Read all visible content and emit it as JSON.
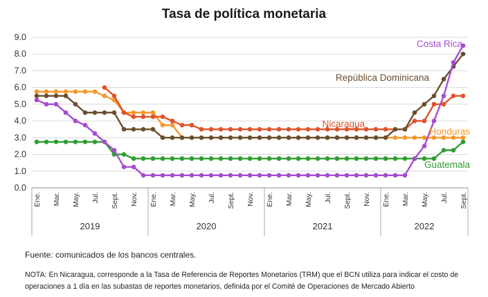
{
  "chart_data": {
    "type": "line",
    "title": "Tasa de política monetaria",
    "ylim": [
      0,
      9
    ],
    "yticks": [
      "0.0",
      "1.0",
      "2.0",
      "3.0",
      "4.0",
      "5.0",
      "6.0",
      "7.0",
      "8.0",
      "9.0"
    ],
    "grid": true,
    "x_tick_labels": [
      "Ene.",
      "Mar.",
      "May.",
      "Jul.",
      "Sept.",
      "Nov.",
      "Ene.",
      "Mar.",
      "May.",
      "Jul.",
      "Sept.",
      "Nov.",
      "Ene.",
      "Mar.",
      "May.",
      "Jul.",
      "Sept.",
      "Nov.",
      "Ene.",
      "Mar.",
      "May.",
      "Jul.",
      "Sept."
    ],
    "years": [
      "2019",
      "2020",
      "2021",
      "2022"
    ],
    "series": [
      {
        "name": "Costa Rica",
        "color": "#a64ccf",
        "values": [
          5.25,
          5.25,
          5.0,
          5.0,
          4.75,
          4.5,
          4.0,
          4.0,
          3.75,
          3.25,
          3.25,
          2.75,
          2.25,
          2.25,
          1.25,
          1.25,
          1.25,
          0.75,
          0.75,
          0.75,
          0.75,
          0.75,
          0.75,
          0.75,
          0.75,
          0.75,
          0.75,
          0.75,
          0.75,
          0.75,
          0.75,
          0.75,
          0.75,
          0.75,
          0.75,
          0.75,
          0.75,
          0.75,
          0.75,
          0.75,
          0.75,
          0.75,
          0.75,
          0.75,
          0.75,
          0.75,
          0.75,
          0.75,
          0.75,
          0.75,
          0.75,
          0.75,
          0.75,
          0.75,
          0.75,
          0.75,
          0.75,
          0.75,
          0.75,
          0.75,
          0.75,
          1.25,
          1.75,
          1.75,
          2.5,
          4.0,
          4.0,
          5.5,
          7.5,
          7.5,
          8.5
        ]
      },
      {
        "name": "República Dominicana",
        "color": "#6b4e2e",
        "values": [
          5.5,
          5.5,
          5.5,
          5.5,
          5.5,
          5.5,
          5.0,
          4.75,
          4.5,
          4.5,
          4.5,
          4.5,
          4.5,
          4.5,
          3.5,
          3.5,
          3.5,
          3.5,
          3.5,
          3.5,
          3.5,
          3.0,
          3.0,
          3.0,
          3.0,
          3.0,
          3.0,
          3.0,
          3.0,
          3.0,
          3.0,
          3.0,
          3.0,
          3.0,
          3.0,
          3.0,
          3.0,
          3.0,
          3.0,
          3.0,
          3.0,
          3.0,
          3.0,
          3.0,
          3.0,
          3.0,
          3.0,
          3.0,
          3.0,
          3.0,
          3.0,
          3.0,
          3.0,
          3.0,
          3.0,
          3.0,
          3.0,
          3.0,
          3.5,
          3.5,
          3.5,
          3.5,
          4.5,
          5.0,
          5.0,
          5.5,
          5.5,
          6.5,
          7.25,
          7.75,
          8.0
        ]
      },
      {
        "name": "Nicaragua",
        "color": "#e0522a",
        "values": [
          null,
          null,
          null,
          null,
          null,
          null,
          null,
          null,
          null,
          null,
          null,
          null,
          null,
          null,
          null,
          null,
          null,
          null,
          null,
          null,
          null,
          null,
          null,
          null,
          null,
          null,
          null,
          null,
          null,
          null,
          null,
          null,
          null,
          null,
          null,
          null,
          null,
          null,
          null,
          null,
          null,
          null,
          null,
          null,
          null,
          null,
          null,
          null,
          null,
          null,
          null,
          null,
          null,
          null,
          null,
          null,
          null,
          null,
          null,
          null,
          null,
          null,
          null,
          null,
          null,
          null,
          null,
          null,
          null,
          null,
          null
        ]
      },
      {
        "name": "Honduras",
        "color": "#f5962a",
        "values": [
          5.75,
          5.75,
          5.75,
          5.75,
          5.75,
          5.75,
          5.75,
          5.75,
          5.75,
          5.75,
          5.75,
          5.5,
          5.5,
          5.25,
          4.5,
          4.5,
          4.5,
          4.5,
          4.5,
          4.5,
          3.75,
          3.75,
          3.75,
          3.0,
          3.0,
          3.0,
          3.0,
          3.0,
          3.0,
          3.0,
          3.0,
          3.0,
          3.0,
          3.0,
          3.0,
          3.0,
          3.0,
          3.0,
          3.0,
          3.0,
          3.0,
          3.0,
          3.0,
          3.0,
          3.0,
          3.0,
          3.0,
          3.0,
          3.0,
          3.0,
          3.0,
          3.0,
          3.0,
          3.0,
          3.0,
          3.0,
          3.0,
          3.0,
          3.0,
          3.0,
          3.0,
          3.0,
          3.0,
          3.0,
          3.0,
          3.0,
          3.0,
          3.0,
          3.0,
          3.0,
          3.0
        ]
      },
      {
        "name": "Guatemala",
        "color": "#2e9e30",
        "values": [
          2.75,
          2.75,
          2.75,
          2.75,
          2.75,
          2.75,
          2.75,
          2.75,
          2.75,
          2.75,
          2.75,
          2.75,
          2.75,
          2.0,
          2.0,
          2.0,
          1.75,
          1.75,
          1.75,
          1.75,
          1.75,
          1.75,
          1.75,
          1.75,
          1.75,
          1.75,
          1.75,
          1.75,
          1.75,
          1.75,
          1.75,
          1.75,
          1.75,
          1.75,
          1.75,
          1.75,
          1.75,
          1.75,
          1.75,
          1.75,
          1.75,
          1.75,
          1.75,
          1.75,
          1.75,
          1.75,
          1.75,
          1.75,
          1.75,
          1.75,
          1.75,
          1.75,
          1.75,
          1.75,
          1.75,
          1.75,
          1.75,
          1.75,
          1.75,
          1.75,
          1.75,
          1.75,
          1.75,
          1.75,
          1.75,
          1.75,
          1.75,
          1.75,
          2.0,
          2.25,
          2.25,
          2.75,
          2.75
        ]
      }
    ],
    "nicaragua_values": [
      6.0,
      5.5,
      4.5,
      4.25,
      4.25,
      4.25,
      4.25,
      4.0,
      3.75,
      3.75,
      3.5,
      3.5,
      3.5,
      3.5,
      3.5,
      3.5,
      3.5,
      3.5,
      3.5,
      3.5,
      3.5,
      3.5,
      3.5,
      3.5,
      3.5,
      3.5,
      3.5,
      3.5,
      3.5,
      3.5,
      3.5,
      3.5,
      4.0,
      4.0,
      5.0,
      5.0,
      5.5,
      5.5
    ]
  },
  "notes": {
    "source": "Fuente: comunicados de los bancos centrales.",
    "nota": "NOTA: En Nicaragua, corresponde a la Tasa de Referencia de Reportes Monetarios (TRM) que el BCN utiliza para indicar el costo de operaciones a 1 día en las subastas de reportes monetarios, definida por el Comité de Operaciones de Mercado Abierto"
  }
}
